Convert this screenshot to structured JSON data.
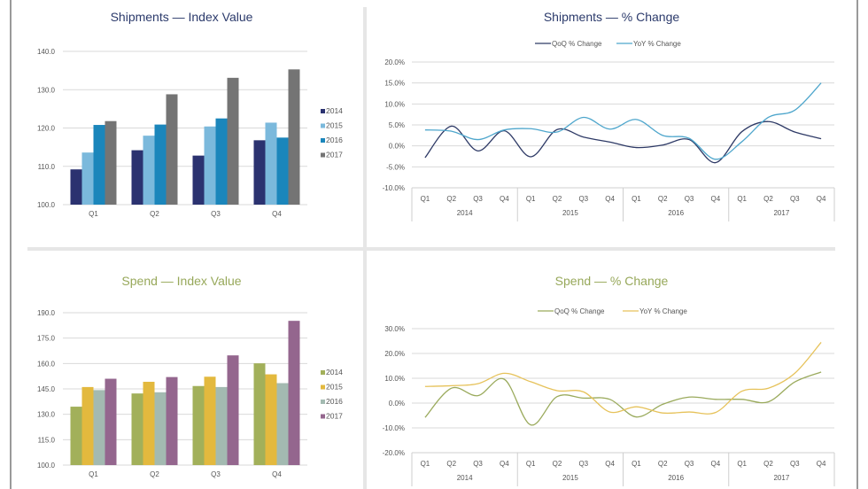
{
  "colors": {
    "shipments_title": "#2b3a6b",
    "spend_title": "#97a85a",
    "grid": "#d9d9d9",
    "tick_text": "#555555"
  },
  "chart_data": [
    {
      "id": "shipments-index",
      "type": "bar",
      "title": "Shipments — Index Value",
      "categories": [
        "Q1",
        "Q2",
        "Q3",
        "Q4"
      ],
      "yticks": [
        "100.0",
        "110.0",
        "120.0",
        "130.0",
        "140.0"
      ],
      "ylim": [
        100,
        140
      ],
      "grid": true,
      "legend_position": "right",
      "series": [
        {
          "name": "2014",
          "color": "#2b3270",
          "values": [
            109.2,
            114.2,
            112.8,
            116.8
          ]
        },
        {
          "name": "2015",
          "color": "#7bb9dc",
          "values": [
            113.6,
            118.0,
            120.4,
            121.4
          ]
        },
        {
          "name": "2016",
          "color": "#1b86bb",
          "values": [
            120.8,
            120.9,
            122.5,
            117.5
          ]
        },
        {
          "name": "2017",
          "color": "#747474",
          "values": [
            121.8,
            128.8,
            133.1,
            135.3
          ]
        }
      ]
    },
    {
      "id": "shipments-change",
      "type": "line",
      "title": "Shipments — % Change",
      "categories": [
        "Q1",
        "Q2",
        "Q3",
        "Q4",
        "Q1",
        "Q2",
        "Q3",
        "Q4",
        "Q1",
        "Q2",
        "Q3",
        "Q4",
        "Q1",
        "Q2",
        "Q3",
        "Q4"
      ],
      "groups": [
        "2014",
        "2015",
        "2016",
        "2017"
      ],
      "yticks": [
        "-10.0%",
        "-5.0%",
        "0.0%",
        "5.0%",
        "10.0%",
        "15.0%",
        "20.0%"
      ],
      "ylim": [
        -10,
        20
      ],
      "grid": true,
      "legend_position": "top",
      "series": [
        {
          "name": "QoQ % Change",
          "color": "#2e3a66",
          "values": [
            -2.8,
            4.7,
            -1.2,
            3.6,
            -2.6,
            3.9,
            2.1,
            0.9,
            -0.4,
            0.2,
            1.5,
            -4.0,
            3.4,
            5.8,
            3.3,
            1.7
          ]
        },
        {
          "name": "YoY % Change",
          "color": "#4ea6cc",
          "values": [
            3.8,
            3.5,
            1.5,
            3.8,
            4.1,
            3.3,
            6.8,
            4.0,
            6.3,
            2.5,
            1.8,
            -3.2,
            1.0,
            6.8,
            8.5,
            15.0
          ]
        }
      ]
    },
    {
      "id": "spend-index",
      "type": "bar",
      "title": "Spend — Index Value",
      "categories": [
        "Q1",
        "Q2",
        "Q3",
        "Q4"
      ],
      "yticks": [
        "100.0",
        "115.0",
        "130.0",
        "145.0",
        "160.0",
        "175.0",
        "190.0"
      ],
      "ylim": [
        100,
        190
      ],
      "grid": true,
      "legend_position": "right",
      "series": [
        {
          "name": "2014",
          "color": "#a2b05a",
          "values": [
            134.5,
            142.3,
            146.7,
            160.1
          ]
        },
        {
          "name": "2015",
          "color": "#e3b93e",
          "values": [
            146.1,
            149.2,
            152.2,
            153.6
          ]
        },
        {
          "name": "2016",
          "color": "#a3bab1",
          "values": [
            144.3,
            143.0,
            146.1,
            148.4
          ]
        },
        {
          "name": "2017",
          "color": "#94668e",
          "values": [
            151.0,
            152.0,
            164.8,
            185.2
          ]
        }
      ]
    },
    {
      "id": "spend-change",
      "type": "line",
      "title": "Spend — % Change",
      "categories": [
        "Q1",
        "Q2",
        "Q3",
        "Q4",
        "Q1",
        "Q2",
        "Q3",
        "Q4",
        "Q1",
        "Q2",
        "Q3",
        "Q4",
        "Q1",
        "Q2",
        "Q3",
        "Q4"
      ],
      "groups": [
        "2014",
        "2015",
        "2016",
        "2017"
      ],
      "yticks": [
        "-20.0%",
        "-10.0%",
        "0.0%",
        "10.0%",
        "20.0%",
        "30.0%"
      ],
      "ylim": [
        -20,
        30
      ],
      "grid": true,
      "legend_position": "top",
      "series": [
        {
          "name": "QoQ % Change",
          "color": "#9aaa5c",
          "values": [
            -5.8,
            6.0,
            3.0,
            9.6,
            -8.8,
            2.6,
            2.0,
            1.5,
            -5.6,
            -0.5,
            2.4,
            1.5,
            1.5,
            0.5,
            8.5,
            12.5
          ]
        },
        {
          "name": "YoY % Change",
          "color": "#e6c25a",
          "values": [
            6.7,
            7.0,
            7.8,
            12.0,
            8.6,
            5.0,
            4.5,
            -3.6,
            -1.5,
            -4.0,
            -3.6,
            -3.8,
            4.8,
            6.0,
            12.0,
            24.5
          ]
        }
      ]
    }
  ]
}
